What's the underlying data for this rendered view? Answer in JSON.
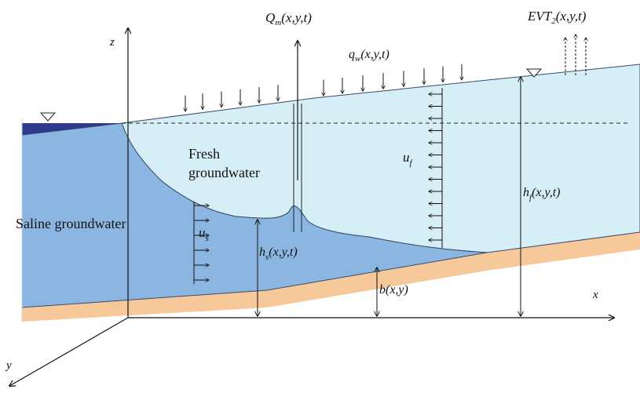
{
  "labels": {
    "z_axis": "z",
    "x_axis": "x",
    "y_axis": "y",
    "fresh_line1": "Fresh",
    "fresh_line2": "groundwater",
    "saline": "Saline groundwater",
    "qm": "Q",
    "qm_sub": "m",
    "qm_args": "(x,y,t)",
    "qw": "q",
    "qw_sub": "w",
    "qw_args": "(x,y,t)",
    "evt": "EVT",
    "evt_sub": "2",
    "evt_args": "(x,y,t)",
    "uf": "u",
    "uf_sub": "f",
    "us": "u",
    "us_sub": "s",
    "hf": "h",
    "hf_sub": "f",
    "hf_args": "(x,y,t)",
    "hs": "h",
    "hs_sub": "s",
    "hs_args": "(x,y,t)",
    "b": "b(x,y)"
  },
  "colors": {
    "sea": "#2e3a8c",
    "saline": "#8cb6e2",
    "fresh": "#d6eef5",
    "bedrock": "#f7c99a",
    "outline": "#3a4a6a",
    "arrow": "#111111"
  }
}
